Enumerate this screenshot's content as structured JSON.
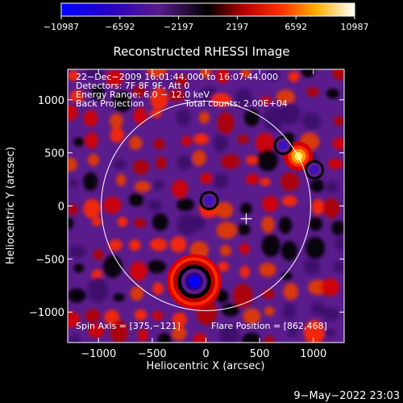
{
  "chart_data": {
    "type": "heatmap",
    "title": "Reconstructed RHESSI Image",
    "xlabel": "Heliocentric X (arcsec)",
    "ylabel": "Heliocentric Y (arcsec)",
    "xlim": [
      -1287,
      1287
    ],
    "ylim": [
      -1287,
      1287
    ],
    "xticks": [
      -1000,
      -500,
      0,
      500,
      1000
    ],
    "yticks": [
      -1000,
      -500,
      0,
      500,
      1000
    ],
    "xtick_labels": [
      "−1000",
      "−500",
      "0",
      "500",
      "1000"
    ],
    "ytick_labels": [
      "−1000",
      "−500",
      "0",
      "500",
      "1000"
    ],
    "colorbar": {
      "min": -10987,
      "max": 10987,
      "ticks": [
        -10987,
        -6592,
        -2197,
        2197,
        6592,
        10987
      ],
      "tick_labels": [
        "−10987",
        "−6592",
        "−2197",
        "2197",
        "6592",
        "10987"
      ],
      "colors": [
        "#0000ff",
        "#3a00ae",
        "#5a1c8c",
        "#000000",
        "#b40000",
        "#ff2a00",
        "#ffbf00",
        "#ffffff"
      ]
    },
    "annotations": [
      "22−Dec−2009 16:01:44.000 to 16:07:44.000",
      "Detectors: 7F 8F 9F, Att 0",
      "Energy Range: 6.0 − 12.0 keV",
      "Back Projection",
      "Total counts: 2.00E+04"
    ],
    "spin_axis_label": "Spin Axis = [375,−121]",
    "flare_position_label": "Flare Position = [862,468]",
    "spin_axis": [
      375,
      -121
    ],
    "flare_position": [
      862,
      468
    ],
    "solar_disk_radius": 975,
    "sources": [
      {
        "x": 862,
        "y": 468,
        "kind": "positive peak"
      },
      {
        "x": -110,
        "y": -712,
        "kind": "negative peak"
      },
      {
        "x": 30,
        "y": 50,
        "kind": "negative"
      },
      {
        "x": 720,
        "y": 570,
        "kind": "negative"
      },
      {
        "x": 1010,
        "y": 340,
        "kind": "negative"
      }
    ]
  },
  "footer_date": "9−May−2022 23:03"
}
